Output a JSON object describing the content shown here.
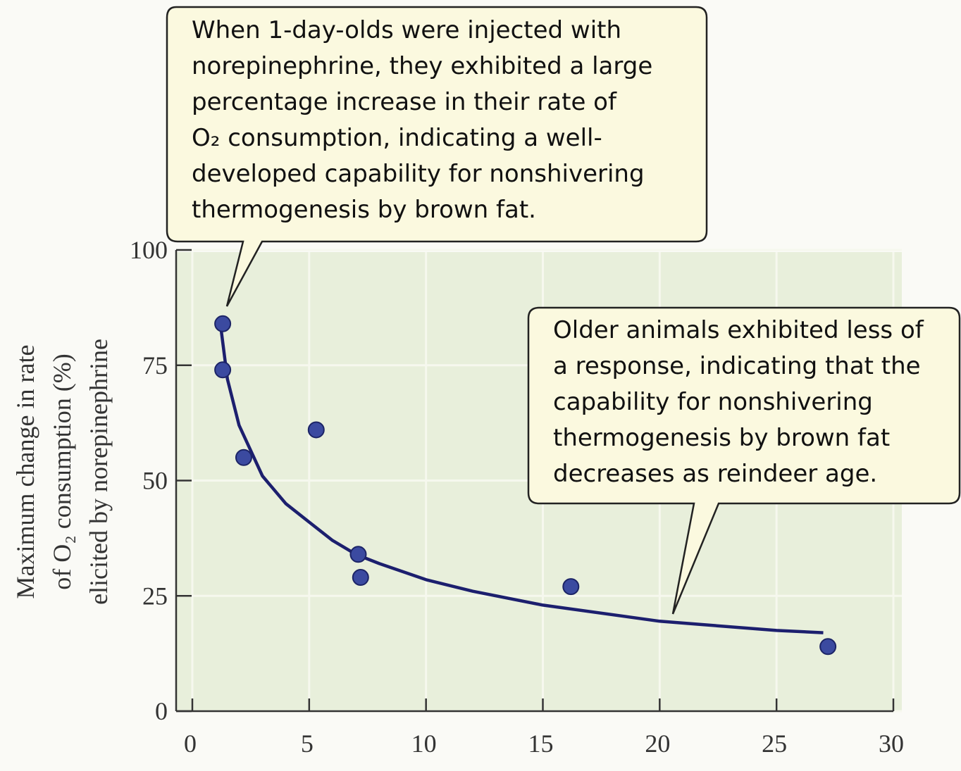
{
  "chart_data": {
    "type": "scatter",
    "x": [
      1.3,
      1.3,
      2.2,
      5.3,
      7.1,
      7.2,
      16.2,
      27.2
    ],
    "values": [
      84,
      74,
      55,
      61,
      34,
      29,
      27,
      14
    ],
    "color": "#3b4aa0",
    "fit": {
      "x": [
        1.2,
        1.5,
        2,
        3,
        4,
        5,
        6,
        7,
        8,
        10,
        12,
        15,
        20,
        25,
        27
      ],
      "values": [
        84,
        72,
        62,
        51,
        45,
        41,
        37,
        34,
        32,
        28.5,
        26,
        23,
        19.5,
        17.5,
        17
      ],
      "color": "#1c1f6e"
    },
    "xlim": [
      0,
      30
    ],
    "xticks": [
      0,
      5,
      10,
      15,
      20,
      25,
      30
    ],
    "ylim": [
      0,
      100
    ],
    "yticks": [
      0,
      25,
      50,
      75,
      100
    ],
    "grid": true,
    "ylabel": [
      "Maximum change in rate",
      "of O₂ consumption (%)",
      "elicited by norepinephrine"
    ],
    "annotations": [
      {
        "lines": [
          "When 1-day-olds were injected with",
          "norepinephrine, they exhibited a large",
          "percentage increase in their rate of",
          "O₂ consumption, indicating a well-",
          "developed capability for nonshivering",
          "thermogenesis by brown fat."
        ]
      },
      {
        "lines": [
          "Older animals exhibited less of",
          "a response, indicating that the",
          "capability for nonshivering",
          "thermogenesis by brown fat",
          "decreases as reindeer age."
        ]
      }
    ]
  }
}
